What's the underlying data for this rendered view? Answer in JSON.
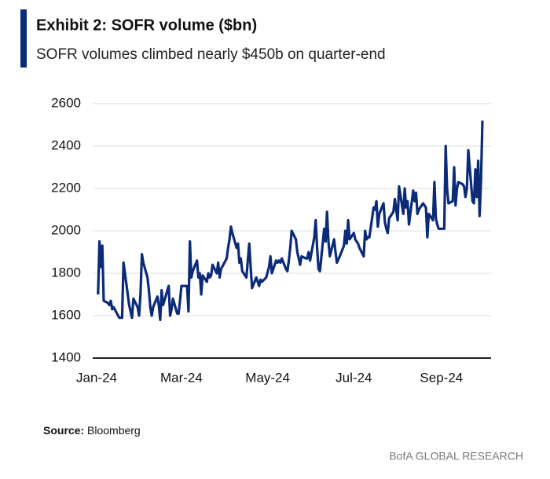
{
  "chart_data": {
    "type": "line",
    "title": "Exhibit 2: SOFR volume ($bn)",
    "subtitle": "SOFR volumes climbed nearly $450b on quarter-end",
    "source_label": "Source:",
    "source": "Bloomberg",
    "footer": "BofA GLOBAL RESEARCH",
    "color": "#0b2a78",
    "grid": true,
    "xlim": [
      0,
      278
    ],
    "xticks": [
      {
        "value": 0,
        "label": "Jan-24"
      },
      {
        "value": 60,
        "label": "Mar-24"
      },
      {
        "value": 121,
        "label": "May-24"
      },
      {
        "value": 182,
        "label": "Jul-24"
      },
      {
        "value": 244,
        "label": "Sep-24"
      }
    ],
    "ylim": [
      1400,
      2600
    ],
    "yticks": [
      1400,
      1600,
      1800,
      2000,
      2200,
      2400,
      2600
    ],
    "x": [
      1,
      2,
      3,
      4,
      5,
      8,
      9,
      10,
      11,
      12,
      16,
      17,
      18,
      19,
      22,
      23,
      24,
      25,
      26,
      29,
      30,
      31,
      32,
      33,
      36,
      37,
      38,
      39,
      40,
      43,
      44,
      45,
      46,
      47,
      51,
      52,
      53,
      54,
      57,
      58,
      59,
      60,
      61,
      64,
      65,
      66,
      67,
      68,
      71,
      72,
      73,
      74,
      75,
      78,
      79,
      80,
      81,
      82,
      85,
      86,
      87,
      88,
      92,
      93,
      94,
      95,
      96,
      99,
      100,
      101,
      102,
      103,
      106,
      107,
      108,
      109,
      110,
      113,
      114,
      115,
      116,
      117,
      120,
      122,
      123,
      124,
      127,
      128,
      129,
      130,
      131,
      134,
      135,
      136,
      137,
      138,
      141,
      142,
      143,
      144,
      145,
      148,
      149,
      150,
      151,
      154,
      155,
      156,
      157,
      158,
      161,
      162,
      163,
      164,
      165,
      168,
      169,
      170,
      172,
      175,
      176,
      177,
      178,
      179,
      182,
      183,
      185,
      186,
      189,
      190,
      191,
      192,
      193,
      196,
      197,
      198,
      199,
      200,
      203,
      204,
      205,
      206,
      207,
      210,
      211,
      212,
      213,
      214,
      217,
      218,
      219,
      220,
      221,
      224,
      225,
      226,
      227,
      228,
      231,
      232,
      233,
      234,
      235,
      238,
      239,
      240,
      241,
      242,
      245,
      246,
      247,
      248,
      249,
      252,
      253,
      254,
      255,
      256,
      259,
      260,
      261,
      262,
      263,
      266,
      267,
      268,
      269,
      270,
      271,
      272,
      273
    ],
    "values": [
      1700,
      1950,
      1830,
      1930,
      1670,
      1660,
      1650,
      1670,
      1630,
      1640,
      1590,
      1590,
      1590,
      1850,
      1700,
      1650,
      1620,
      1590,
      1680,
      1640,
      1600,
      1700,
      1890,
      1850,
      1780,
      1720,
      1640,
      1600,
      1640,
      1690,
      1650,
      1580,
      1720,
      1650,
      1740,
      1600,
      1630,
      1680,
      1610,
      1610,
      1670,
      1740,
      1740,
      1740,
      1620,
      1950,
      1780,
      1810,
      1860,
      1780,
      1800,
      1700,
      1790,
      1760,
      1800,
      1780,
      1790,
      1840,
      1800,
      1850,
      1780,
      1820,
      1870,
      1920,
      1960,
      2020,
      1990,
      1920,
      1940,
      1850,
      1870,
      1810,
      1780,
      1860,
      1940,
      1830,
      1730,
      1780,
      1760,
      1740,
      1770,
      1760,
      1780,
      1830,
      1880,
      1800,
      1860,
      1850,
      1860,
      1850,
      1870,
      1820,
      1810,
      1860,
      1920,
      2000,
      1960,
      1900,
      1870,
      1840,
      1880,
      1870,
      1870,
      1900,
      1860,
      1970,
      2050,
      1920,
      1820,
      1810,
      2010,
      1950,
      2090,
      1950,
      1880,
      1960,
      1900,
      1850,
      1880,
      1930,
      2000,
      1940,
      2050,
      1960,
      1990,
      1960,
      1940,
      1920,
      1880,
      2000,
      1960,
      1970,
      1970,
      2110,
      2100,
      2140,
      2020,
      2080,
      2130,
      2040,
      2010,
      1990,
      2060,
      2090,
      2150,
      2100,
      2050,
      2210,
      2080,
      2200,
      2110,
      2140,
      2030,
      2190,
      2140,
      2180,
      2080,
      2100,
      2130,
      2120,
      2110,
      1970,
      2080,
      2050,
      2230,
      2060,
      2030,
      2010,
      2010,
      2010,
      2400,
      2200,
      2130,
      2140,
      2300,
      2120,
      2200,
      2230,
      2220,
      2210,
      2160,
      2200,
      2380,
      2140,
      2130,
      2290,
      2160,
      2330,
      2070,
      2240,
      2520
    ]
  }
}
